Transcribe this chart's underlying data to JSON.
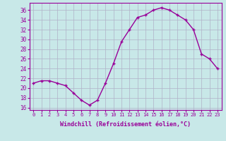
{
  "x": [
    0,
    1,
    2,
    3,
    4,
    5,
    6,
    7,
    8,
    9,
    10,
    11,
    12,
    13,
    14,
    15,
    16,
    17,
    18,
    19,
    20,
    21,
    22,
    23
  ],
  "y": [
    21,
    21.5,
    21.5,
    21,
    20.5,
    19,
    17.5,
    16.5,
    17.5,
    21,
    25,
    29.5,
    32,
    34.5,
    35,
    36,
    36.5,
    36,
    35,
    34,
    32,
    27,
    26,
    24
  ],
  "line_color": "#990099",
  "marker": "+",
  "bg_color": "#c8e8e8",
  "grid_color": "#b0b0c8",
  "xlabel": "Windchill (Refroidissement éolien,°C)",
  "xlabel_color": "#990099",
  "ylabel_ticks": [
    16,
    18,
    20,
    22,
    24,
    26,
    28,
    30,
    32,
    34,
    36
  ],
  "xtick_labels": [
    "0",
    "1",
    "2",
    "3",
    "4",
    "5",
    "6",
    "7",
    "8",
    "9",
    "10",
    "11",
    "12",
    "13",
    "14",
    "15",
    "16",
    "17",
    "18",
    "19",
    "20",
    "21",
    "22",
    "23"
  ],
  "ylim": [
    15.5,
    37.5
  ],
  "xlim": [
    -0.5,
    23.5
  ],
  "tick_color": "#990099",
  "font_family": "monospace",
  "spine_color": "#990099"
}
